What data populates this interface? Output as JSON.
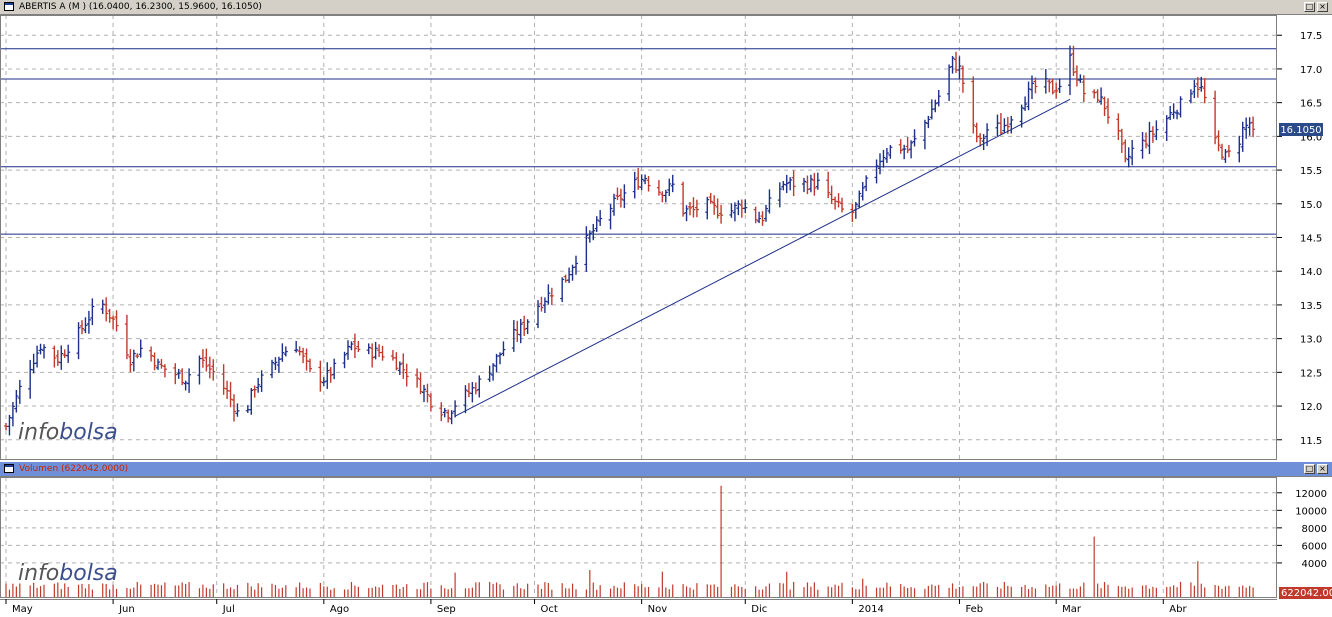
{
  "price_panel": {
    "title": "ABERTIS A (M ) (16.0400, 16.2300, 15.9600, 16.1050)",
    "last_price_label": "16.1050",
    "watermark_a": "info",
    "watermark_b": "bolsa",
    "restore_icon": "restore-icon",
    "close_icon": "close-icon"
  },
  "volume_panel": {
    "title": "Volumen (622042.0000)",
    "last_volume_label": "622042.00",
    "watermark_a": "info",
    "watermark_b": "bolsa"
  },
  "x_axis": {
    "months": [
      {
        "label": "May",
        "day": 0
      },
      {
        "label": "Jun",
        "day": 31
      },
      {
        "label": "Jul",
        "day": 61
      },
      {
        "label": "Ago",
        "day": 92
      },
      {
        "label": "Sep",
        "day": 123
      },
      {
        "label": "Oct",
        "day": 153
      },
      {
        "label": "Nov",
        "day": 184
      },
      {
        "label": "Dic",
        "day": 214
      },
      {
        "label": "2014",
        "day": 245
      },
      {
        "label": "Feb",
        "day": 276
      },
      {
        "label": "Mar",
        "day": 304
      },
      {
        "label": "Abr",
        "day": 335
      }
    ]
  },
  "colors": {
    "up": "#1c2f8a",
    "down": "#c0392b",
    "grid": "#b0b0b0",
    "line": "#1c2f8a",
    "volume": "#c0392b",
    "watermark_a": "#555555",
    "watermark_b": "#3b4f8c",
    "label_bg": "#2a4a8a"
  },
  "chart_data": [
    {
      "type": "ohlc",
      "title": "ABERTIS A (M ) (16.0400, 16.2300, 15.9600, 16.1050)",
      "ylim": [
        11.2,
        17.8
      ],
      "yticks": [
        11.5,
        12.0,
        12.5,
        13.0,
        13.5,
        14.0,
        14.5,
        15.0,
        15.5,
        16.0,
        16.5,
        17.0,
        17.5
      ],
      "ytick_labels": [
        "11.5",
        "12.0",
        "12.5",
        "13.0",
        "13.5",
        "14.0",
        "14.5",
        "15.0",
        "15.5",
        "16.0",
        "16.5",
        "17.0",
        "17.5"
      ],
      "grid": true,
      "horizontal_lines": [
        17.3,
        16.85,
        15.55,
        14.55
      ],
      "trendline": {
        "from": {
          "day": 130,
          "price": 11.85
        },
        "to": {
          "day": 308,
          "price": 16.55
        }
      },
      "last": 16.105,
      "anchors": [
        [
          0,
          11.7
        ],
        [
          5,
          12.4
        ],
        [
          10,
          12.9
        ],
        [
          15,
          12.7
        ],
        [
          20,
          13.0
        ],
        [
          25,
          13.4
        ],
        [
          28,
          13.5
        ],
        [
          32,
          13.2
        ],
        [
          36,
          12.7
        ],
        [
          40,
          12.9
        ],
        [
          44,
          12.6
        ],
        [
          48,
          12.5
        ],
        [
          52,
          12.4
        ],
        [
          56,
          12.7
        ],
        [
          60,
          12.5
        ],
        [
          64,
          12.2
        ],
        [
          68,
          11.8
        ],
        [
          70,
          12.0
        ],
        [
          72,
          12.3
        ],
        [
          76,
          12.5
        ],
        [
          80,
          12.8
        ],
        [
          84,
          12.9
        ],
        [
          88,
          12.5
        ],
        [
          92,
          12.4
        ],
        [
          96,
          12.6
        ],
        [
          100,
          12.9
        ],
        [
          104,
          12.8
        ],
        [
          108,
          12.8
        ],
        [
          112,
          12.7
        ],
        [
          116,
          12.5
        ],
        [
          120,
          12.3
        ],
        [
          124,
          12.0
        ],
        [
          128,
          11.9
        ],
        [
          131,
          12.1
        ],
        [
          134,
          12.2
        ],
        [
          138,
          12.4
        ],
        [
          142,
          12.7
        ],
        [
          146,
          13.0
        ],
        [
          150,
          13.2
        ],
        [
          154,
          13.5
        ],
        [
          158,
          13.7
        ],
        [
          162,
          13.9
        ],
        [
          166,
          14.3
        ],
        [
          170,
          14.6
        ],
        [
          174,
          14.9
        ],
        [
          178,
          15.1
        ],
        [
          182,
          15.3
        ],
        [
          185,
          15.4
        ],
        [
          188,
          15.2
        ],
        [
          191,
          15.2
        ],
        [
          194,
          15.3
        ],
        [
          196,
          14.9
        ],
        [
          199,
          14.9
        ],
        [
          202,
          15.0
        ],
        [
          206,
          14.9
        ],
        [
          210,
          14.9
        ],
        [
          213,
          15.0
        ],
        [
          216,
          14.8
        ],
        [
          219,
          14.8
        ],
        [
          222,
          15.1
        ],
        [
          225,
          15.3
        ],
        [
          228,
          15.3
        ],
        [
          232,
          15.3
        ],
        [
          236,
          15.3
        ],
        [
          238,
          15.1
        ],
        [
          241,
          14.95
        ],
        [
          244,
          14.8
        ],
        [
          246,
          14.95
        ],
        [
          249,
          15.3
        ],
        [
          252,
          15.6
        ],
        [
          255,
          15.8
        ],
        [
          258,
          15.85
        ],
        [
          261,
          15.8
        ],
        [
          264,
          16.0
        ],
        [
          267,
          16.3
        ],
        [
          270,
          16.6
        ],
        [
          272,
          16.9
        ],
        [
          274,
          17.1
        ],
        [
          276,
          17.0
        ],
        [
          278,
          16.6
        ],
        [
          280,
          16.1
        ],
        [
          282,
          15.9
        ],
        [
          285,
          16.2
        ],
        [
          288,
          16.1
        ],
        [
          291,
          16.3
        ],
        [
          294,
          16.5
        ],
        [
          297,
          16.7
        ],
        [
          300,
          16.8
        ],
        [
          303,
          16.7
        ],
        [
          306,
          16.8
        ],
        [
          308,
          17.15
        ],
        [
          310,
          16.9
        ],
        [
          312,
          16.65
        ],
        [
          314,
          16.55
        ],
        [
          316,
          16.6
        ],
        [
          318,
          16.45
        ],
        [
          320,
          16.2
        ],
        [
          322,
          16.0
        ],
        [
          324,
          15.6
        ],
        [
          326,
          15.8
        ],
        [
          329,
          15.9
        ],
        [
          332,
          16.05
        ],
        [
          335,
          16.2
        ],
        [
          338,
          16.4
        ],
        [
          341,
          16.5
        ],
        [
          344,
          16.8
        ],
        [
          346,
          16.7
        ],
        [
          348,
          16.4
        ],
        [
          350,
          15.9
        ],
        [
          353,
          15.7
        ],
        [
          356,
          15.8
        ],
        [
          358,
          16.1
        ],
        [
          360,
          16.2
        ],
        [
          362,
          16.105
        ]
      ]
    },
    {
      "type": "bar",
      "title": "Volumen (622042.0000)",
      "ylim": [
        0,
        13800
      ],
      "yticks": [
        4000,
        6000,
        8000,
        10000,
        12000
      ],
      "ytick_labels": [
        "4000",
        "6000",
        "8000",
        "10000",
        "12000"
      ],
      "grid": true,
      "baseline": 1300,
      "spikes": [
        {
          "day": 207,
          "value": 12800
        },
        {
          "day": 315,
          "value": 7000
        },
        {
          "day": 345,
          "value": 4200
        },
        {
          "day": 190,
          "value": 3000
        },
        {
          "day": 226,
          "value": 3000
        },
        {
          "day": 169,
          "value": 3200
        },
        {
          "day": 83,
          "value": 2900
        },
        {
          "day": 130,
          "value": 2900
        },
        {
          "day": 257,
          "value": 2400
        },
        {
          "day": 248,
          "value": 2200
        }
      ],
      "last": 622042.0
    }
  ]
}
